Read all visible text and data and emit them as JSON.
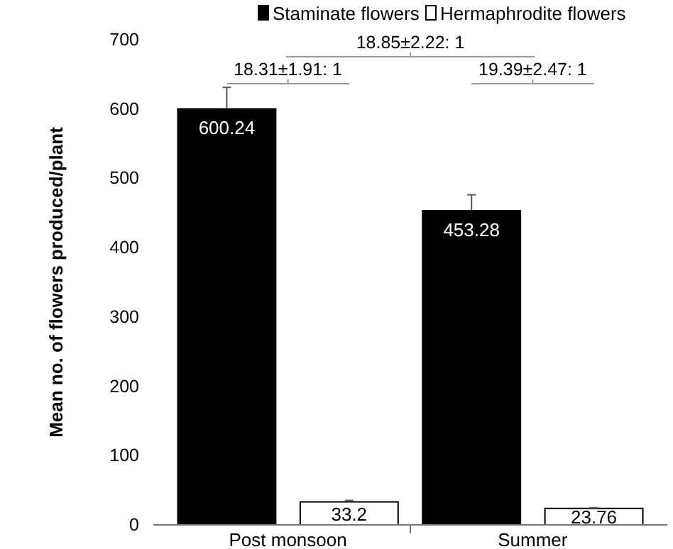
{
  "chart_data": {
    "type": "bar",
    "ylabel": "Mean no. of flowers produced/plant",
    "categories": [
      "Post monsoon",
      "Summer"
    ],
    "series": [
      {
        "name": "Staminate flowers",
        "color": "#000000",
        "values": [
          600.24,
          453.28
        ],
        "errors": [
          31,
          23
        ]
      },
      {
        "name": "Hermaphrodite flowers",
        "color": "#ffffff",
        "values": [
          33.2,
          23.76
        ],
        "errors": [
          2,
          1
        ]
      }
    ],
    "ylim": [
      0,
      700
    ],
    "yticks": [
      0,
      100,
      200,
      300,
      400,
      500,
      600,
      700
    ],
    "data_labels": true,
    "legend": "top",
    "grid": false,
    "annotations": [
      "18.31±1.91: 1",
      "18.85±2.22: 1",
      "19.39±2.47: 1"
    ]
  }
}
